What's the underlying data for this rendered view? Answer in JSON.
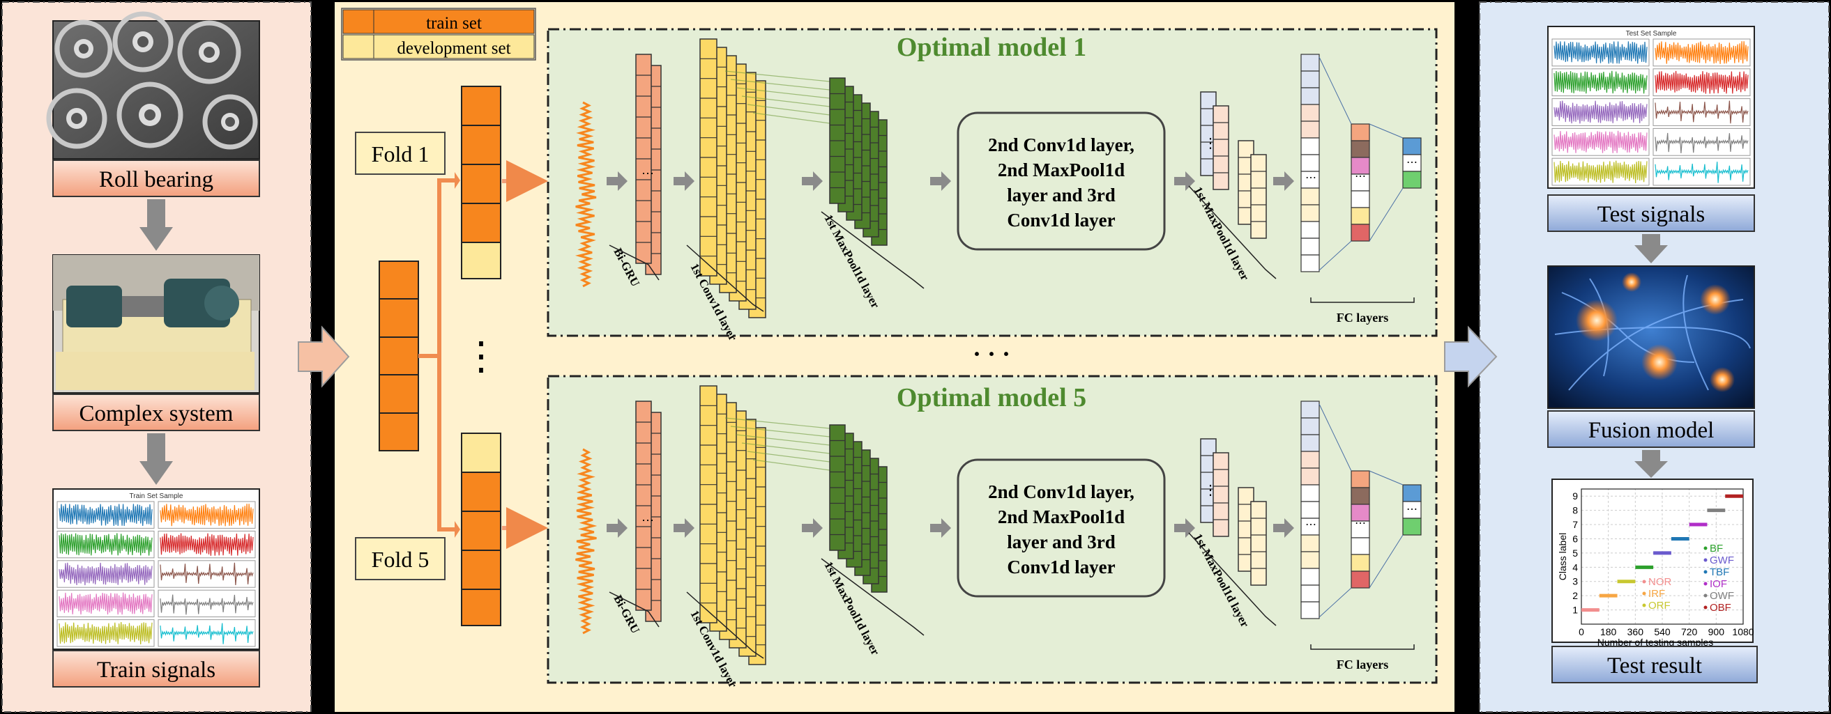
{
  "left_panel": {
    "roll_bearing": "Roll bearing",
    "complex_system": "Complex system",
    "train_signals": "Train signals",
    "train_sample_title": "Train Set Sample"
  },
  "legend": {
    "train": "train set",
    "dev": "development set",
    "train_color": "#f7861e",
    "dev_color": "#fde89a"
  },
  "folds": {
    "fold1": "Fold 1",
    "fold5": "Fold 5",
    "ellipsis": "⋮"
  },
  "models": {
    "model1": "Optimal model 1",
    "model5": "Optimal model 5",
    "title_color": "#4e8a2f",
    "between": "· · ·"
  },
  "layers": {
    "bigru": "Bi-GRU",
    "conv1": "1st Conv1d layer",
    "pool1": "1st MaxPool1d layer",
    "mid_line1": "2nd Conv1d layer,",
    "mid_line2": "2nd MaxPool1d",
    "mid_line3": "layer and 3rd",
    "mid_line4": "Conv1d layer",
    "fc": "FC layers"
  },
  "right_panel": {
    "test_signals": "Test signals",
    "test_sample_title": "Test Set Sample",
    "fusion_model": "Fusion model",
    "test_result": "Test result"
  },
  "result_chart": {
    "ylabel": "Class label",
    "xlabel": "Number of testing samples",
    "x_ticks": [
      "0",
      "180",
      "360",
      "540",
      "720",
      "900",
      "1080"
    ],
    "y_ticks": [
      "1",
      "2",
      "3",
      "4",
      "5",
      "6",
      "7",
      "8",
      "9"
    ],
    "legend_left": [
      "NOR",
      "IRF",
      "ORF"
    ],
    "legend_right": [
      "BF",
      "GWF",
      "TBF",
      "IOF",
      "OWF",
      "OBF"
    ]
  },
  "chart_data": {
    "type": "scatter",
    "title": "",
    "xlabel": "Number of testing samples",
    "ylabel": "Class label",
    "xlim": [
      0,
      1080
    ],
    "ylim": [
      0,
      9.5
    ],
    "series": [
      {
        "name": "NOR",
        "color": "#f28e8e",
        "x": [
          0,
          120
        ],
        "y": [
          1,
          1
        ]
      },
      {
        "name": "IRF",
        "color": "#f7a644",
        "x": [
          120,
          240
        ],
        "y": [
          2,
          2
        ]
      },
      {
        "name": "ORF",
        "color": "#c8c830",
        "x": [
          240,
          360
        ],
        "y": [
          3,
          3
        ]
      },
      {
        "name": "BF",
        "color": "#2ca02c",
        "x": [
          360,
          480
        ],
        "y": [
          4,
          4
        ]
      },
      {
        "name": "GWF",
        "color": "#6a5acd",
        "x": [
          480,
          600
        ],
        "y": [
          5,
          5
        ]
      },
      {
        "name": "TBF",
        "color": "#1f77b4",
        "x": [
          600,
          720
        ],
        "y": [
          6,
          6
        ]
      },
      {
        "name": "IOF",
        "color": "#b02ec8",
        "x": [
          720,
          840
        ],
        "y": [
          7,
          7
        ]
      },
      {
        "name": "OWF",
        "color": "#7f7f7f",
        "x": [
          840,
          960
        ],
        "y": [
          8,
          8
        ]
      },
      {
        "name": "OBF",
        "color": "#b22222",
        "x": [
          960,
          1080
        ],
        "y": [
          9,
          9
        ]
      }
    ]
  }
}
